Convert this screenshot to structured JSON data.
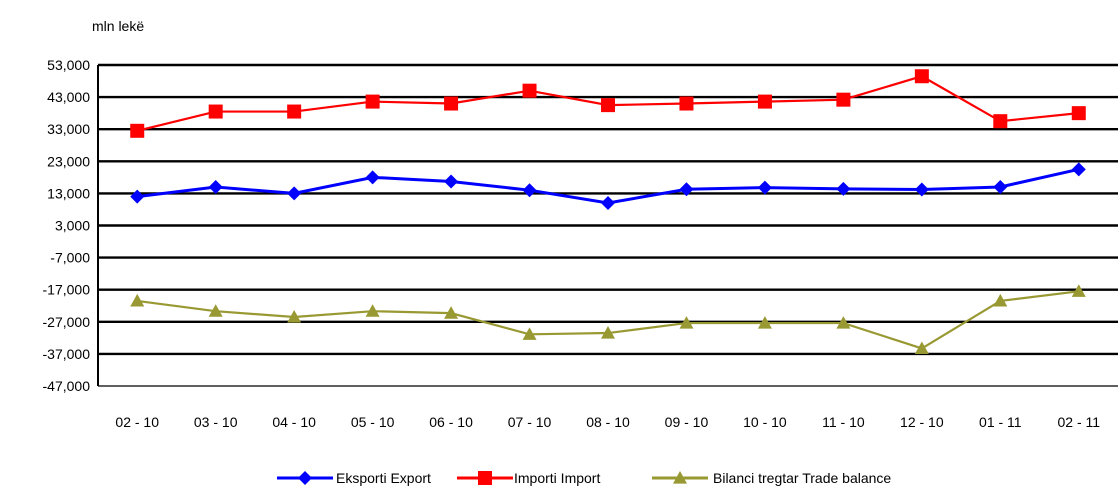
{
  "chart_data": {
    "type": "line",
    "unit_label": "mln lekë",
    "categories": [
      "02 - 10",
      "03 - 10",
      "04 - 10",
      "05 - 10",
      "06 - 10",
      "07 - 10",
      "08 - 10",
      "09 - 10",
      "10 - 10",
      "11 - 10",
      "12 - 10",
      "01 - 11",
      "02 - 11"
    ],
    "ylim": [
      -47000,
      53000
    ],
    "yticks": [
      53000,
      43000,
      33000,
      23000,
      13000,
      3000,
      -7000,
      -17000,
      -27000,
      -37000,
      -47000
    ],
    "ytick_labels": [
      "53,000",
      "43,000",
      "33,000",
      "23,000",
      "13,000",
      "3,000",
      "-7,000",
      "-17,000",
      "-27,000",
      "-37,000",
      "-47,000"
    ],
    "grid": true,
    "legend_position": "bottom",
    "series": [
      {
        "name": "Eksporti Export",
        "color": "#0000FF",
        "marker": "diamond",
        "values": [
          12000,
          15000,
          13000,
          18000,
          16700,
          14000,
          10000,
          14300,
          14800,
          14400,
          14200,
          15000,
          20500
        ]
      },
      {
        "name": "Importi Import",
        "color": "#FF0000",
        "marker": "square",
        "values": [
          32500,
          38500,
          38500,
          41600,
          41000,
          45000,
          40500,
          41000,
          41600,
          42200,
          49500,
          35500,
          38000
        ]
      },
      {
        "name": "Bilanci tregtar Trade balance",
        "color": "#999933",
        "marker": "triangle",
        "values": [
          -20500,
          -23700,
          -25500,
          -23700,
          -24300,
          -30900,
          -30500,
          -27400,
          -27400,
          -27400,
          -35300,
          -20500,
          -17500
        ]
      }
    ]
  }
}
